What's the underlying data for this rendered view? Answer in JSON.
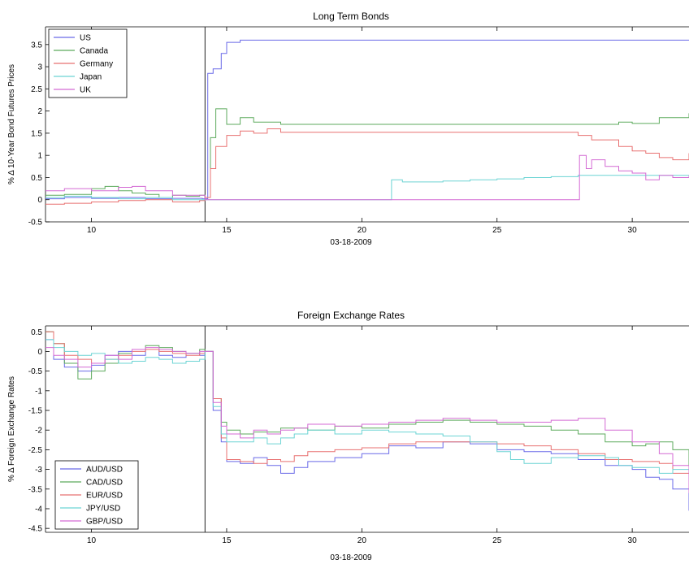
{
  "chart_data": [
    {
      "type": "line",
      "title": "Long Term Bonds",
      "xlabel": "03-18-2009",
      "ylabel": "% Δ 10-Year Bond Futures Prices",
      "xlim": [
        8.3,
        32.1
      ],
      "ylim": [
        -0.5,
        3.9
      ],
      "xticks": [
        "10",
        "15",
        "20",
        "25",
        "30"
      ],
      "yticks": [
        "-0.5",
        "0",
        "0.5",
        "1",
        "1.5",
        "2",
        "2.5",
        "3",
        "3.5"
      ],
      "event_line_x": 14.2,
      "legend_position": "top-left",
      "series": [
        {
          "name": "US",
          "color": "#6a6ae8",
          "x": [
            8.3,
            9,
            10,
            11,
            12,
            13,
            14.1,
            14.3,
            14.5,
            14.8,
            15,
            15.5,
            20,
            25,
            30,
            32.1
          ],
          "y": [
            0.02,
            0.05,
            0.03,
            0.05,
            0.02,
            0.03,
            0.02,
            2.85,
            2.95,
            3.3,
            3.55,
            3.6,
            3.6,
            3.6,
            3.6,
            3.6
          ]
        },
        {
          "name": "Canada",
          "color": "#5caa5c",
          "x": [
            8.3,
            9,
            10,
            10.5,
            11,
            11.5,
            12,
            12.5,
            13,
            13.5,
            14,
            14.2,
            14.4,
            14.6,
            15,
            15.5,
            16,
            17,
            20,
            25,
            29,
            29.5,
            30,
            31,
            32.1
          ],
          "y": [
            0.1,
            0.12,
            0.25,
            0.3,
            0.2,
            0.15,
            0.12,
            0.05,
            0.1,
            0.08,
            0.1,
            0.05,
            1.4,
            2.05,
            1.7,
            1.85,
            1.75,
            1.7,
            1.7,
            1.7,
            1.7,
            1.75,
            1.72,
            1.85,
            1.95
          ]
        },
        {
          "name": "Germany",
          "color": "#e87070",
          "x": [
            8.3,
            9,
            10,
            11,
            12,
            13,
            14,
            14.2,
            14.4,
            14.6,
            15,
            15.5,
            16,
            16.5,
            17,
            20,
            25,
            27,
            28,
            28.5,
            29,
            29.5,
            30,
            30.5,
            31,
            31.5,
            32.1
          ],
          "y": [
            -0.1,
            -0.08,
            -0.05,
            -0.02,
            0.0,
            -0.05,
            -0.02,
            0.05,
            0.7,
            1.2,
            1.45,
            1.55,
            1.5,
            1.6,
            1.52,
            1.52,
            1.52,
            1.52,
            1.45,
            1.35,
            1.35,
            1.2,
            1.1,
            1.05,
            0.95,
            0.9,
            1.05
          ]
        },
        {
          "name": "Japan",
          "color": "#6cd4d4",
          "x": [
            8.3,
            9,
            10,
            11,
            12,
            13,
            14.2,
            21,
            21.1,
            21.5,
            22,
            23,
            24,
            25,
            26,
            27,
            28,
            29,
            30,
            31,
            32.1
          ],
          "y": [
            0.05,
            0.08,
            0.05,
            0.02,
            0.05,
            0.0,
            0.0,
            0.0,
            0.45,
            0.4,
            0.4,
            0.42,
            0.45,
            0.47,
            0.5,
            0.52,
            0.55,
            0.55,
            0.55,
            0.55,
            0.55
          ]
        },
        {
          "name": "UK",
          "color": "#d46ad4",
          "x": [
            8.3,
            9,
            10,
            11,
            11.5,
            12,
            13,
            14.2,
            20,
            25,
            28,
            28.05,
            28.3,
            28.5,
            29,
            29.5,
            30,
            30.5,
            31,
            31.5,
            32.1
          ],
          "y": [
            0.2,
            0.25,
            0.2,
            0.28,
            0.3,
            0.2,
            0.1,
            0.0,
            0.0,
            0.0,
            0.0,
            1.0,
            0.7,
            0.9,
            0.75,
            0.65,
            0.6,
            0.45,
            0.55,
            0.5,
            0.55
          ]
        }
      ]
    },
    {
      "type": "line",
      "title": "Foreign Exchange Rates",
      "xlabel": "03-18-2009",
      "ylabel": "% Δ Foreign Exchange Rates",
      "xlim": [
        8.3,
        32.1
      ],
      "ylim": [
        -4.6,
        0.65
      ],
      "xticks": [
        "10",
        "15",
        "20",
        "25",
        "30"
      ],
      "yticks": [
        "-4.5",
        "-4",
        "-3.5",
        "-3",
        "-2.5",
        "-2",
        "-1.5",
        "-1",
        "-0.5",
        "0",
        "0.5"
      ],
      "event_line_x": 14.2,
      "legend_position": "bottom-left",
      "series": [
        {
          "name": "AUD/USD",
          "color": "#6a6ae8",
          "x": [
            8.3,
            8.6,
            9,
            9.5,
            10,
            10.5,
            11,
            11.5,
            12,
            12.5,
            13,
            13.5,
            14,
            14.2,
            14.5,
            14.8,
            15,
            15.5,
            16,
            16.5,
            17,
            17.5,
            18,
            19,
            20,
            21,
            22,
            23,
            24,
            25,
            26,
            27,
            28,
            29,
            30,
            30.5,
            31,
            31.5,
            32.1
          ],
          "y": [
            0.3,
            -0.2,
            -0.4,
            -0.5,
            -0.35,
            -0.1,
            0.0,
            -0.1,
            0.05,
            -0.1,
            -0.15,
            -0.05,
            -0.1,
            0.0,
            -1.5,
            -2.3,
            -2.8,
            -2.85,
            -2.7,
            -2.9,
            -3.1,
            -2.95,
            -2.8,
            -2.7,
            -2.6,
            -2.4,
            -2.45,
            -2.3,
            -2.35,
            -2.5,
            -2.55,
            -2.6,
            -2.75,
            -2.9,
            -3.0,
            -3.2,
            -3.25,
            -3.5,
            -4.05
          ]
        },
        {
          "name": "CAD/USD",
          "color": "#5caa5c",
          "x": [
            8.3,
            8.6,
            9,
            9.5,
            10,
            10.5,
            11,
            11.5,
            12,
            12.5,
            13,
            13.5,
            14,
            14.2,
            14.5,
            14.8,
            15,
            15.5,
            16,
            17,
            18,
            19,
            20,
            21,
            22,
            23,
            24,
            25,
            26,
            27,
            28,
            29,
            30,
            30.5,
            31,
            31.5,
            32.1
          ],
          "y": [
            0.5,
            0.2,
            -0.3,
            -0.7,
            -0.5,
            -0.3,
            -0.05,
            0.05,
            0.15,
            0.1,
            0.0,
            -0.05,
            0.05,
            0.0,
            -1.2,
            -1.8,
            -2.0,
            -2.1,
            -2.05,
            -1.95,
            -2.0,
            -1.9,
            -1.95,
            -1.85,
            -1.8,
            -1.75,
            -1.8,
            -1.85,
            -1.9,
            -2.0,
            -2.1,
            -2.3,
            -2.4,
            -2.35,
            -2.3,
            -2.5,
            -3.3
          ]
        },
        {
          "name": "EUR/USD",
          "color": "#e87070",
          "x": [
            8.3,
            8.6,
            9,
            9.5,
            10,
            10.5,
            11,
            11.5,
            12,
            12.5,
            13,
            13.5,
            14,
            14.2,
            14.5,
            14.8,
            15,
            15.5,
            16,
            16.5,
            17,
            17.5,
            18,
            19,
            20,
            21,
            22,
            23,
            24,
            25,
            26,
            27,
            28,
            29,
            30,
            31,
            31.5,
            32.1
          ],
          "y": [
            0.5,
            0.2,
            -0.1,
            -0.2,
            -0.3,
            -0.2,
            -0.1,
            0.0,
            0.05,
            0.0,
            -0.05,
            -0.1,
            -0.05,
            0.0,
            -1.2,
            -2.2,
            -2.75,
            -2.8,
            -2.85,
            -2.75,
            -2.8,
            -2.65,
            -2.55,
            -2.5,
            -2.45,
            -2.35,
            -2.3,
            -2.3,
            -2.3,
            -2.35,
            -2.4,
            -2.5,
            -2.6,
            -2.75,
            -2.8,
            -2.85,
            -3.1,
            -3.3
          ]
        },
        {
          "name": "JPY/USD",
          "color": "#6cd4d4",
          "x": [
            8.3,
            8.6,
            9,
            9.5,
            10,
            10.5,
            11,
            11.5,
            12,
            12.5,
            13,
            13.5,
            14,
            14.2,
            14.5,
            14.8,
            15,
            15.5,
            16,
            16.5,
            17,
            17.5,
            18,
            19,
            20,
            21,
            22,
            23,
            24,
            25,
            25.5,
            26,
            27,
            28,
            29,
            29.5,
            30,
            31,
            31.5,
            32.1
          ],
          "y": [
            0.3,
            0.1,
            0.0,
            -0.1,
            -0.05,
            -0.2,
            -0.3,
            -0.25,
            -0.15,
            -0.2,
            -0.3,
            -0.25,
            -0.2,
            0.0,
            -1.4,
            -2.1,
            -2.3,
            -2.3,
            -2.2,
            -2.35,
            -2.2,
            -2.1,
            -2.0,
            -2.1,
            -2.0,
            -2.05,
            -2.1,
            -2.15,
            -2.3,
            -2.55,
            -2.75,
            -2.85,
            -2.7,
            -2.65,
            -2.7,
            -2.9,
            -2.95,
            -3.1,
            -3.0,
            -3.3
          ]
        },
        {
          "name": "GBP/USD",
          "color": "#d46ad4",
          "x": [
            8.3,
            8.6,
            9,
            9.5,
            10,
            10.5,
            11,
            11.5,
            12,
            12.5,
            13,
            13.5,
            14,
            14.2,
            14.5,
            14.8,
            15,
            15.5,
            16,
            16.5,
            17,
            17.5,
            18,
            19,
            20,
            21,
            22,
            23,
            24,
            25,
            26,
            27,
            28,
            29,
            30,
            31,
            31.5,
            32.1
          ],
          "y": [
            0.1,
            -0.1,
            -0.2,
            -0.4,
            -0.3,
            -0.1,
            -0.2,
            0.05,
            0.1,
            0.05,
            0.0,
            -0.05,
            0.0,
            0.0,
            -1.3,
            -1.9,
            -2.1,
            -2.2,
            -2.0,
            -2.1,
            -2.0,
            -1.95,
            -1.85,
            -1.9,
            -1.85,
            -1.8,
            -1.75,
            -1.7,
            -1.75,
            -1.8,
            -1.8,
            -1.75,
            -1.7,
            -2.0,
            -2.3,
            -2.6,
            -2.9,
            -3.6
          ]
        }
      ]
    }
  ]
}
